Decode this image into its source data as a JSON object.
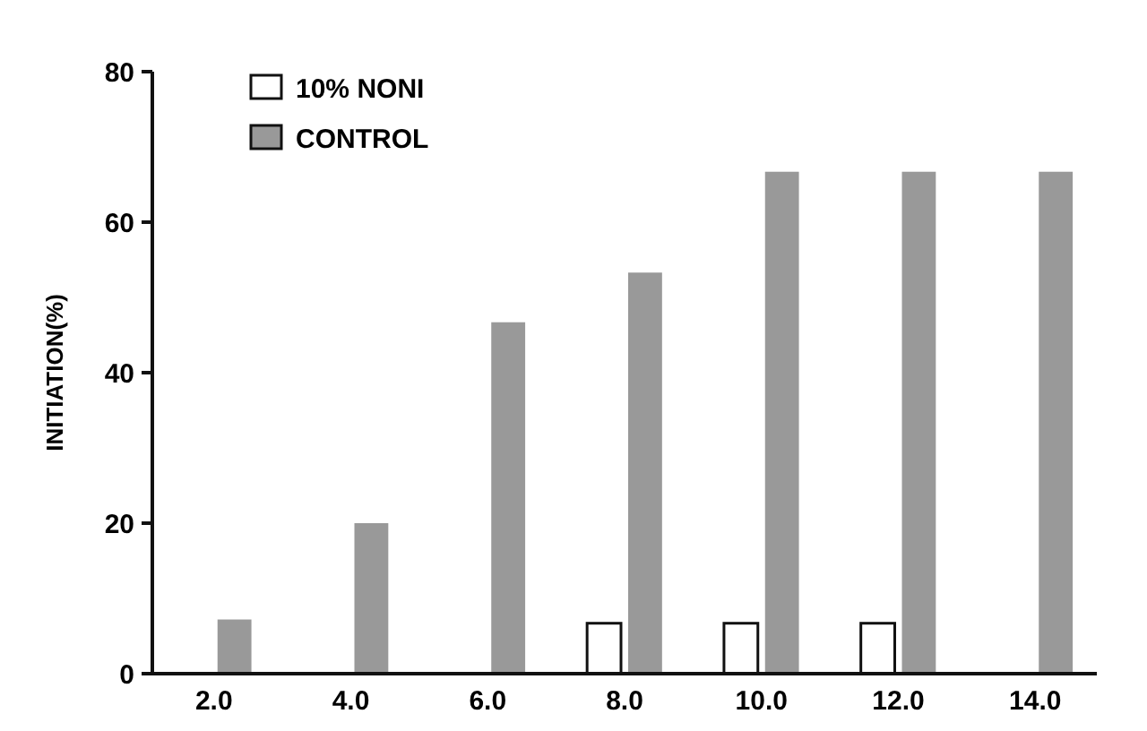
{
  "chart_data": {
    "type": "bar",
    "ylabel": "INITIATION(%)",
    "categories": [
      "2.0",
      "4.0",
      "6.0",
      "8.0",
      "10.0",
      "12.0",
      "14.0"
    ],
    "series": [
      {
        "name": "10% NONI",
        "color": "#ffffff",
        "values": [
          null,
          null,
          null,
          6.7,
          6.7,
          6.7,
          null
        ]
      },
      {
        "name": "CONTROL",
        "color": "#999999",
        "values": [
          7.2,
          20,
          46.7,
          53.3,
          66.7,
          66.7,
          66.7
        ]
      }
    ],
    "ylim": [
      0,
      80
    ],
    "yticks": [
      0,
      20,
      40,
      60,
      80
    ],
    "grid": false,
    "legend": "top left"
  }
}
